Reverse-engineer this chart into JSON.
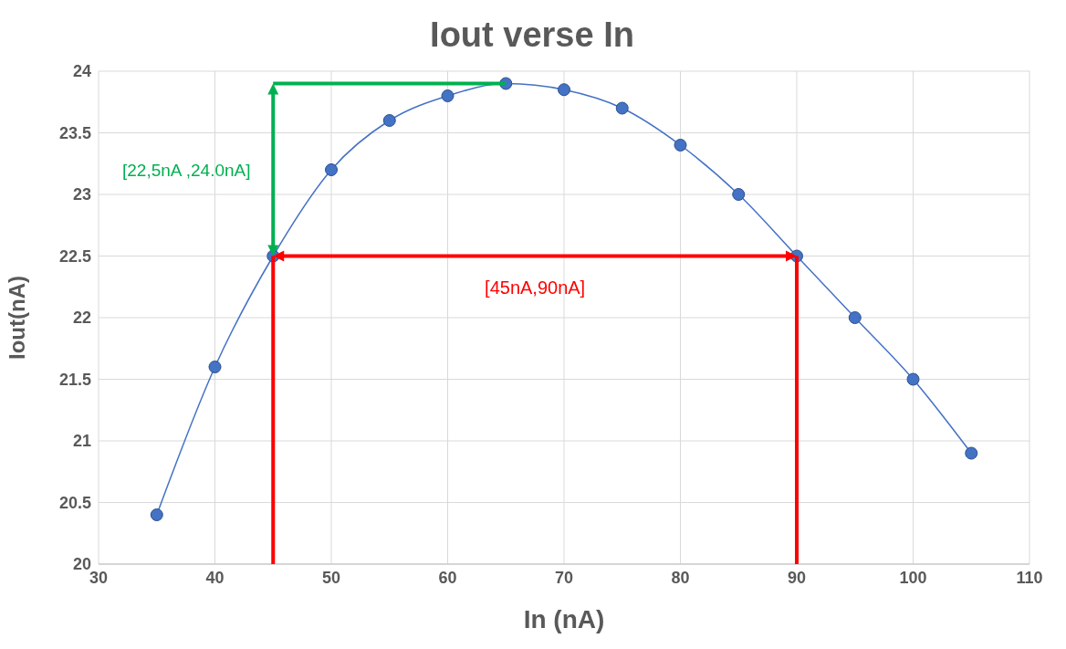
{
  "chart_data": {
    "type": "line",
    "title": "Iout verse In",
    "xlabel": "In (nA)",
    "ylabel": "Iout(nA)",
    "x": [
      35,
      40,
      45,
      50,
      55,
      60,
      65,
      70,
      75,
      80,
      85,
      90,
      95,
      100,
      105
    ],
    "series": [
      {
        "color": "#4472c4",
        "values": [
          20.4,
          21.6,
          22.5,
          23.2,
          23.6,
          23.8,
          23.9,
          23.85,
          23.7,
          23.4,
          23.0,
          22.5,
          22.0,
          21.5,
          20.9
        ]
      }
    ],
    "xlim": [
      30,
      110
    ],
    "xticks": [
      30,
      40,
      50,
      60,
      70,
      80,
      90,
      100,
      110
    ],
    "ylim": [
      20,
      24
    ],
    "yticks": [
      20,
      20.5,
      21,
      21.5,
      22,
      22.5,
      23,
      23.5,
      24
    ],
    "grid": true,
    "marker": "circle",
    "legend": false,
    "annotations": [
      "[45nA,90nA]",
      "[22,5nA ,24.0nA]"
    ]
  }
}
